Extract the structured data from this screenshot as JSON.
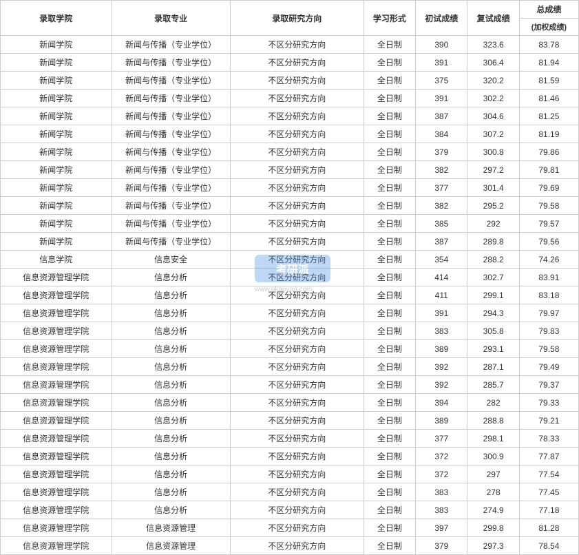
{
  "table": {
    "headers": {
      "college": "录取学院",
      "major": "录取专业",
      "direction": "录取研究方向",
      "mode": "学习形式",
      "preliminary": "初试成绩",
      "retest": "复试成绩",
      "total": "总成绩",
      "total_sub": "(加权成绩)"
    },
    "rows": [
      {
        "college": "新闻学院",
        "major": "新闻与传播（专业学位）",
        "direction": "不区分研究方向",
        "mode": "全日制",
        "score1": "390",
        "score2": "323.6",
        "total": "83.78"
      },
      {
        "college": "新闻学院",
        "major": "新闻与传播（专业学位）",
        "direction": "不区分研究方向",
        "mode": "全日制",
        "score1": "391",
        "score2": "306.4",
        "total": "81.94"
      },
      {
        "college": "新闻学院",
        "major": "新闻与传播（专业学位）",
        "direction": "不区分研究方向",
        "mode": "全日制",
        "score1": "375",
        "score2": "320.2",
        "total": "81.59"
      },
      {
        "college": "新闻学院",
        "major": "新闻与传播（专业学位）",
        "direction": "不区分研究方向",
        "mode": "全日制",
        "score1": "391",
        "score2": "302.2",
        "total": "81.46"
      },
      {
        "college": "新闻学院",
        "major": "新闻与传播（专业学位）",
        "direction": "不区分研究方向",
        "mode": "全日制",
        "score1": "387",
        "score2": "304.6",
        "total": "81.25"
      },
      {
        "college": "新闻学院",
        "major": "新闻与传播（专业学位）",
        "direction": "不区分研究方向",
        "mode": "全日制",
        "score1": "384",
        "score2": "307.2",
        "total": "81.19"
      },
      {
        "college": "新闻学院",
        "major": "新闻与传播（专业学位）",
        "direction": "不区分研究方向",
        "mode": "全日制",
        "score1": "379",
        "score2": "300.8",
        "total": "79.86"
      },
      {
        "college": "新闻学院",
        "major": "新闻与传播（专业学位）",
        "direction": "不区分研究方向",
        "mode": "全日制",
        "score1": "382",
        "score2": "297.2",
        "total": "79.81"
      },
      {
        "college": "新闻学院",
        "major": "新闻与传播（专业学位）",
        "direction": "不区分研究方向",
        "mode": "全日制",
        "score1": "377",
        "score2": "301.4",
        "total": "79.69"
      },
      {
        "college": "新闻学院",
        "major": "新闻与传播（专业学位）",
        "direction": "不区分研究方向",
        "mode": "全日制",
        "score1": "382",
        "score2": "295.2",
        "total": "79.58"
      },
      {
        "college": "新闻学院",
        "major": "新闻与传播（专业学位）",
        "direction": "不区分研究方向",
        "mode": "全日制",
        "score1": "385",
        "score2": "292",
        "total": "79.57"
      },
      {
        "college": "新闻学院",
        "major": "新闻与传播（专业学位）",
        "direction": "不区分研究方向",
        "mode": "全日制",
        "score1": "387",
        "score2": "289.8",
        "total": "79.56"
      },
      {
        "college": "信息学院",
        "major": "信息安全",
        "direction": "不区分研究方向",
        "mode": "全日制",
        "score1": "354",
        "score2": "288.2",
        "total": "74.26"
      },
      {
        "college": "信息资源管理学院",
        "major": "信息分析",
        "direction": "不区分研究方向",
        "mode": "全日制",
        "score1": "414",
        "score2": "302.7",
        "total": "83.91"
      },
      {
        "college": "信息资源管理学院",
        "major": "信息分析",
        "direction": "不区分研究方向",
        "mode": "全日制",
        "score1": "411",
        "score2": "299.1",
        "total": "83.18"
      },
      {
        "college": "信息资源管理学院",
        "major": "信息分析",
        "direction": "不区分研究方向",
        "mode": "全日制",
        "score1": "391",
        "score2": "294.3",
        "total": "79.97"
      },
      {
        "college": "信息资源管理学院",
        "major": "信息分析",
        "direction": "不区分研究方向",
        "mode": "全日制",
        "score1": "383",
        "score2": "305.8",
        "total": "79.83"
      },
      {
        "college": "信息资源管理学院",
        "major": "信息分析",
        "direction": "不区分研究方向",
        "mode": "全日制",
        "score1": "389",
        "score2": "293.1",
        "total": "79.58"
      },
      {
        "college": "信息资源管理学院",
        "major": "信息分析",
        "direction": "不区分研究方向",
        "mode": "全日制",
        "score1": "392",
        "score2": "287.1",
        "total": "79.49"
      },
      {
        "college": "信息资源管理学院",
        "major": "信息分析",
        "direction": "不区分研究方向",
        "mode": "全日制",
        "score1": "392",
        "score2": "285.7",
        "total": "79.37"
      },
      {
        "college": "信息资源管理学院",
        "major": "信息分析",
        "direction": "不区分研究方向",
        "mode": "全日制",
        "score1": "394",
        "score2": "282",
        "total": "79.33"
      },
      {
        "college": "信息资源管理学院",
        "major": "信息分析",
        "direction": "不区分研究方向",
        "mode": "全日制",
        "score1": "389",
        "score2": "288.8",
        "total": "79.21"
      },
      {
        "college": "信息资源管理学院",
        "major": "信息分析",
        "direction": "不区分研究方向",
        "mode": "全日制",
        "score1": "377",
        "score2": "298.1",
        "total": "78.33"
      },
      {
        "college": "信息资源管理学院",
        "major": "信息分析",
        "direction": "不区分研究方向",
        "mode": "全日制",
        "score1": "372",
        "score2": "300.9",
        "total": "77.87"
      },
      {
        "college": "信息资源管理学院",
        "major": "信息分析",
        "direction": "不区分研究方向",
        "mode": "全日制",
        "score1": "372",
        "score2": "297",
        "total": "77.54"
      },
      {
        "college": "信息资源管理学院",
        "major": "信息分析",
        "direction": "不区分研究方向",
        "mode": "全日制",
        "score1": "383",
        "score2": "278",
        "total": "77.45"
      },
      {
        "college": "信息资源管理学院",
        "major": "信息分析",
        "direction": "不区分研究方向",
        "mode": "全日制",
        "score1": "383",
        "score2": "274.9",
        "total": "77.18"
      },
      {
        "college": "信息资源管理学院",
        "major": "信息资源管理",
        "direction": "不区分研究方向",
        "mode": "全日制",
        "score1": "397",
        "score2": "299.8",
        "total": "81.28"
      },
      {
        "college": "信息资源管理学院",
        "major": "信息资源管理",
        "direction": "不区分研究方向",
        "mode": "全日制",
        "score1": "379",
        "score2": "297.3",
        "total": "78.54"
      }
    ]
  },
  "watermark": {
    "text": "考研派",
    "url": "www.okaoyan.com"
  },
  "style": {
    "border_color": "#cccccc",
    "text_color": "#333333",
    "background": "#ffffff",
    "watermark_bg": "#4a90e2",
    "font_size": 12
  }
}
